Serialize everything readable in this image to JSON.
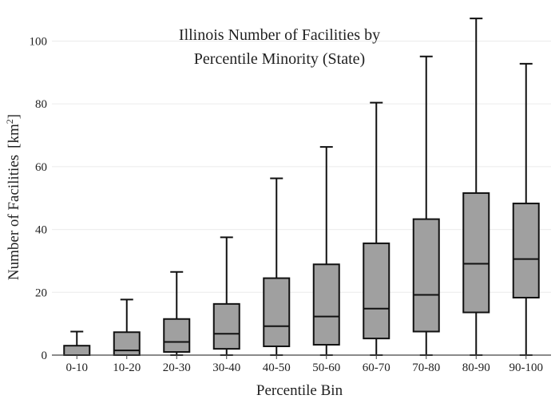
{
  "chart_data": {
    "type": "box",
    "title_lines": [
      "Illinois Number of Facilities by",
      "Percentile Minority (State)"
    ],
    "xlabel": "Percentile Bin",
    "ylabel": "Number of Facilities",
    "ylabel_unit": "[km",
    "ylabel_unit_sup": "2",
    "ylabel_unit_close": "]",
    "ylim": [
      0,
      108
    ],
    "yticks": [
      0,
      20,
      40,
      60,
      80,
      100
    ],
    "ytick_labels": [
      "0",
      "20",
      "40",
      "60",
      "80",
      "100"
    ],
    "grid": true,
    "box_color": "#a0a0a0",
    "line_color": "#111111",
    "categories": [
      "0-10",
      "10-20",
      "20-30",
      "30-40",
      "40-50",
      "50-60",
      "60-70",
      "70-80",
      "80-90",
      "90-100"
    ],
    "boxes": [
      {
        "min": 0,
        "q1": 0,
        "median": 0,
        "q3": 3,
        "max": 7.5
      },
      {
        "min": 0,
        "q1": 0,
        "median": 1.5,
        "q3": 7.3,
        "max": 17.7
      },
      {
        "min": 0,
        "q1": 1,
        "median": 4.2,
        "q3": 11.5,
        "max": 26.5
      },
      {
        "min": 0,
        "q1": 2,
        "median": 6.8,
        "q3": 16.3,
        "max": 37.5
      },
      {
        "min": 0,
        "q1": 2.8,
        "median": 9.2,
        "q3": 24.5,
        "max": 56.3
      },
      {
        "min": 0,
        "q1": 3.3,
        "median": 12.3,
        "q3": 28.9,
        "max": 66.3
      },
      {
        "min": 0,
        "q1": 5.3,
        "median": 14.8,
        "q3": 35.6,
        "max": 80.4
      },
      {
        "min": 0,
        "q1": 7.5,
        "median": 19.2,
        "q3": 43.3,
        "max": 95.1
      },
      {
        "min": 0,
        "q1": 13.6,
        "median": 29.1,
        "q3": 51.6,
        "max": 107.2
      },
      {
        "min": 0,
        "q1": 18.3,
        "median": 30.6,
        "q3": 48.3,
        "max": 92.8
      }
    ]
  }
}
